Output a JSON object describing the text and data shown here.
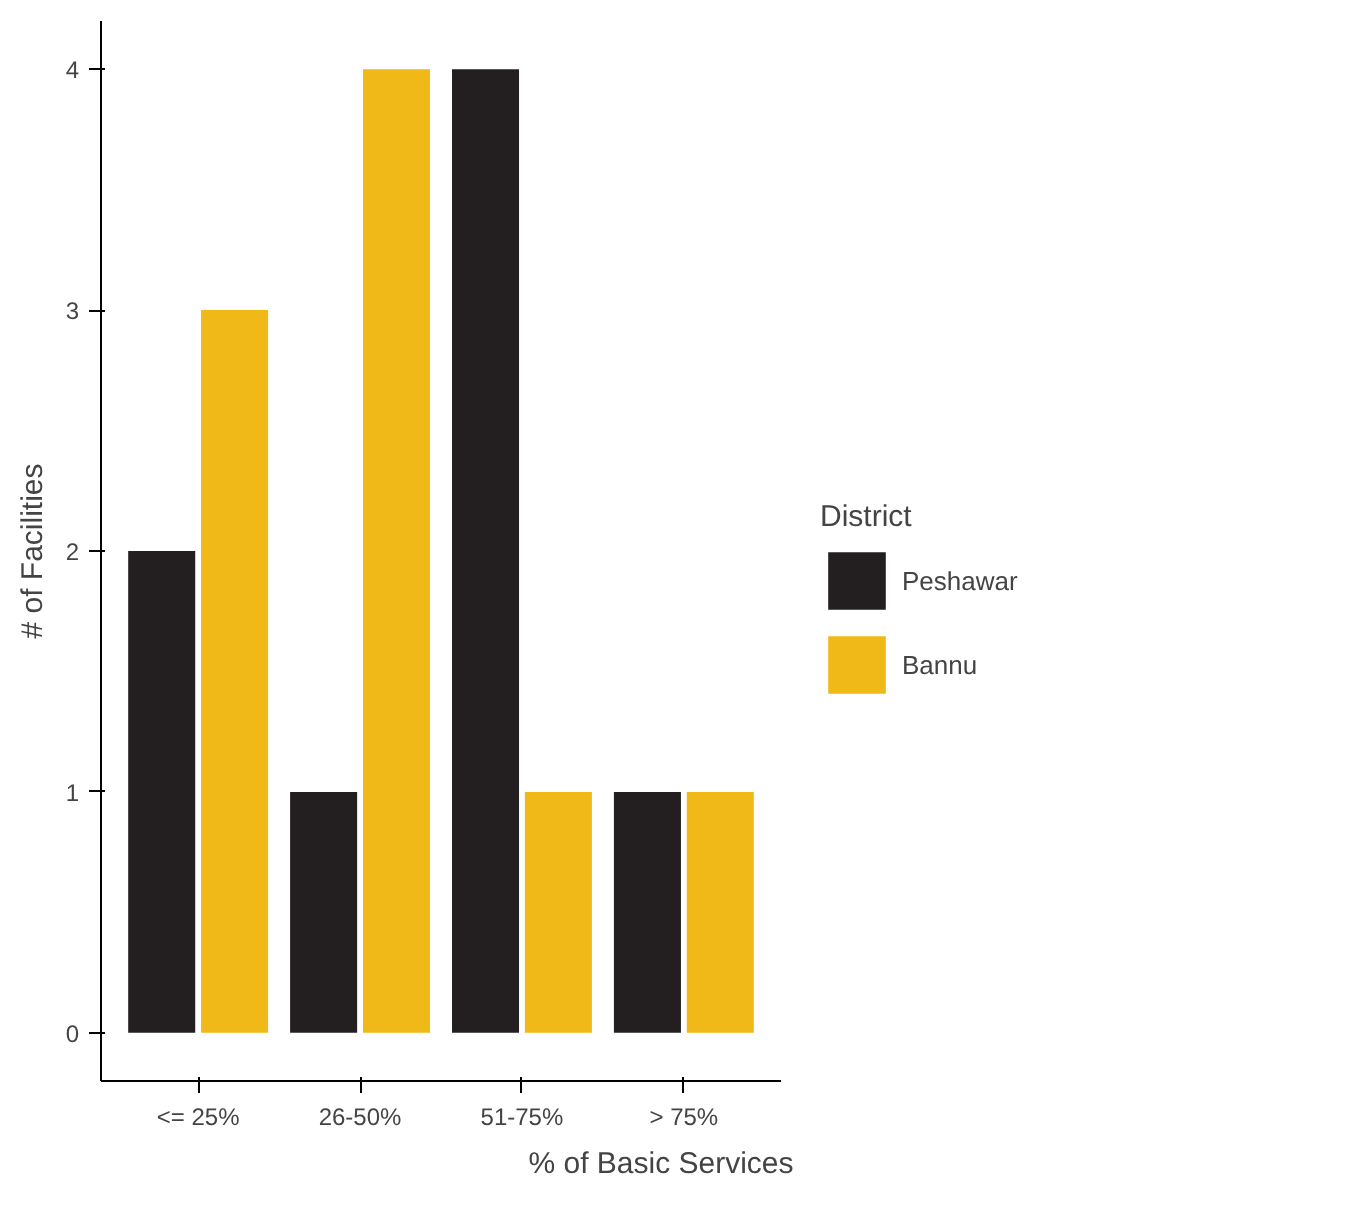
{
  "chart_data": {
    "type": "bar",
    "xlabel": "% of Basic Services",
    "ylabel": "# of Facilities",
    "legend_title": "District",
    "categories": [
      "<= 25%",
      "26-50%",
      "51-75%",
      "> 75%"
    ],
    "series": [
      {
        "name": "Peshawar",
        "color": "#231f20",
        "values": [
          2,
          1,
          4,
          1
        ]
      },
      {
        "name": "Bannu",
        "color": "#f0b917",
        "values": [
          3,
          4,
          1,
          1
        ]
      }
    ],
    "ylim": [
      -0.2,
      4.2
    ],
    "yticks": [
      0,
      1,
      2,
      3,
      4
    ],
    "grid": false,
    "legend": "right"
  }
}
